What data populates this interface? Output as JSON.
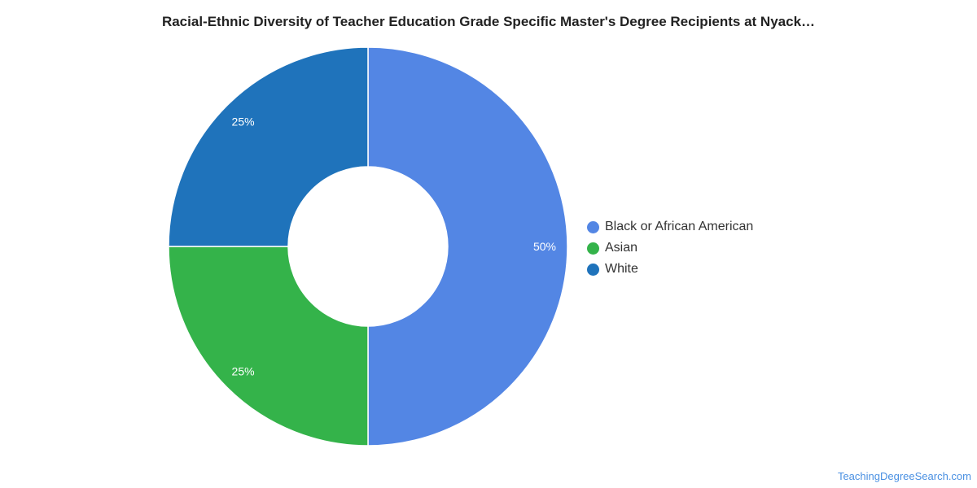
{
  "chart_data": {
    "type": "pie",
    "title": "Racial-Ethnic Diversity of Teacher Education Grade Specific Master's Degree Recipients at Nyack…",
    "categories": [
      "Black or African American",
      "Asian",
      "White"
    ],
    "values": [
      50,
      25,
      25
    ],
    "value_labels": [
      "50%",
      "25%",
      "25%"
    ],
    "colors": [
      "#5386e4",
      "#34b34a",
      "#1f73bb"
    ],
    "donut": true,
    "legend_position": "right"
  },
  "watermark": "TeachingDegreeSearch.com"
}
